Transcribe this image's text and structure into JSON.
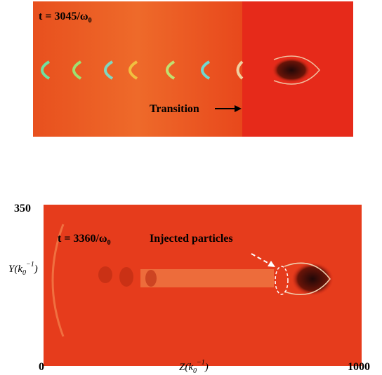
{
  "panels": [
    {
      "time": {
        "main": "t = 3045/ω",
        "sub": "0"
      },
      "annotation": "Transition"
    },
    {
      "time": {
        "main": "t = 3360/ω",
        "sub": "0"
      },
      "annotation": "Injected particles"
    }
  ],
  "axes": {
    "y_top": 350,
    "y_label": {
      "main": "Y(k",
      "sub": "0",
      "sup": "−1",
      "end": ")"
    },
    "x_start": 0,
    "x_label": {
      "main": "Z(k",
      "sub": "0",
      "sup": "−1",
      "end": ")"
    },
    "x_end": 1000
  }
}
